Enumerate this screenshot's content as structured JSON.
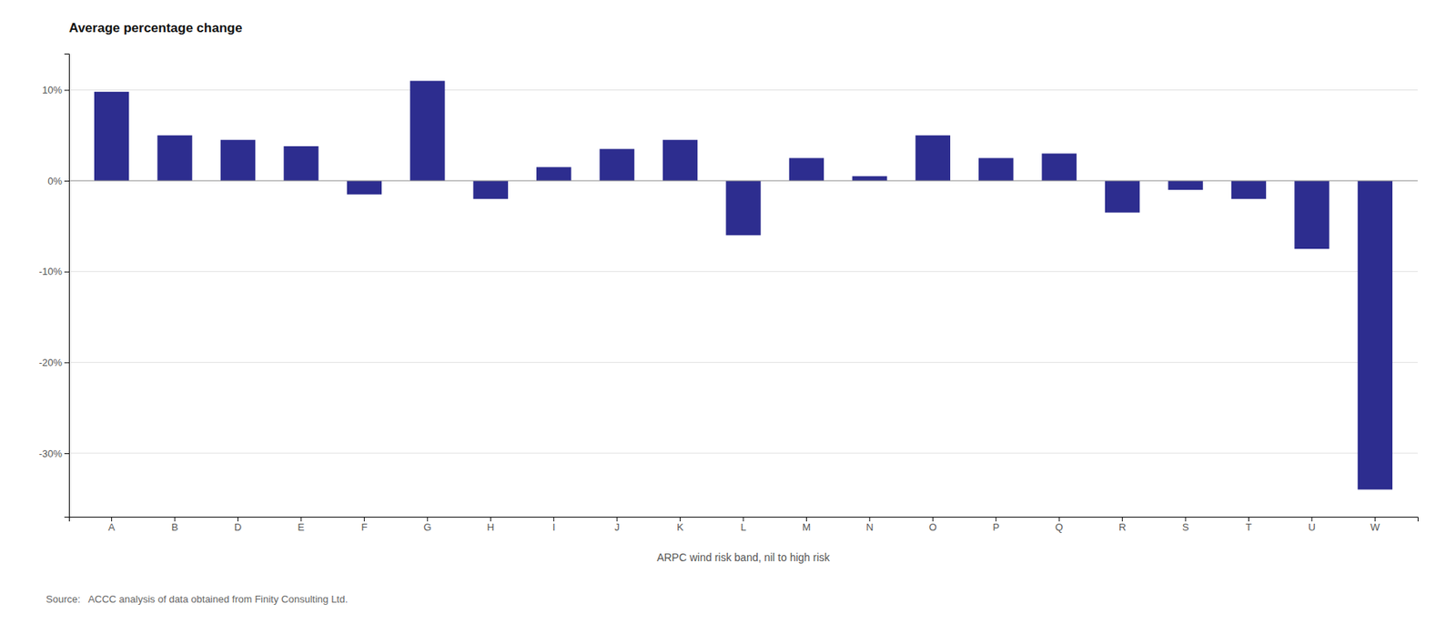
{
  "chart_data": {
    "type": "bar",
    "title": "Average percentage change",
    "xlabel": "ARPC wind risk band, nil to high risk",
    "source": "Source:   ACCC analysis of data obtained from Finity Consulting Ltd.",
    "categories": [
      "A",
      "B",
      "D",
      "E",
      "F",
      "G",
      "H",
      "I",
      "J",
      "K",
      "L",
      "M",
      "N",
      "O",
      "P",
      "Q",
      "R",
      "S",
      "T",
      "U",
      "W"
    ],
    "values": [
      9.8,
      5.0,
      4.5,
      3.8,
      -1.5,
      11.0,
      -2.0,
      1.5,
      3.5,
      4.5,
      -6.0,
      2.5,
      0.5,
      5.0,
      2.5,
      3.0,
      -3.5,
      -1.0,
      -2.0,
      -7.5,
      -34.0
    ],
    "color": "#2d2d8f",
    "ylim": [
      -37,
      14
    ],
    "yticks": [
      {
        "value": 10,
        "label": "10%"
      },
      {
        "value": 0,
        "label": "0%"
      },
      {
        "value": -10,
        "label": "-10%"
      },
      {
        "value": -20,
        "label": "-20%"
      },
      {
        "value": -30,
        "label": "-30%"
      }
    ],
    "grid": true
  }
}
